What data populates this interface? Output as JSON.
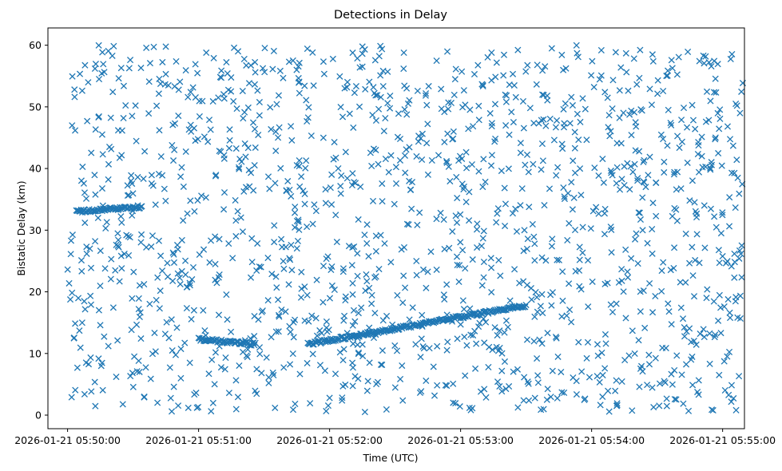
{
  "chart_data": {
    "type": "scatter",
    "title": "Detections in Delay",
    "xlabel": "Time (UTC)",
    "ylabel": "Bistatic Delay (km)",
    "x_ticks": [
      "2026-01-21 05:50:00",
      "2026-01-21 05:51:00",
      "2026-01-21 05:52:00",
      "2026-01-21 05:53:00",
      "2026-01-21 05:54:00",
      "2026-01-21 05:55:00"
    ],
    "y_ticks": [
      "0",
      "10",
      "20",
      "30",
      "40",
      "50",
      "60"
    ],
    "xlim": [
      "2026-01-21 05:49:51",
      "2026-01-21 05:55:10"
    ],
    "ylim": [
      -2.2,
      62.8
    ],
    "grid": false,
    "marker": "x",
    "color": "#1f77b4",
    "tracks": [
      {
        "x_start": "2026-01-21 05:50:04",
        "x_end": "2026-01-21 05:50:34",
        "y_start": 33.0,
        "y_end": 33.8
      },
      {
        "x_start": "2026-01-21 05:51:00",
        "x_end": "2026-01-21 05:51:26",
        "y_start": 12.3,
        "y_end": 11.5
      },
      {
        "x_start": "2026-01-21 05:51:50",
        "x_end": "2026-01-21 05:53:30",
        "y_start": 11.5,
        "y_end": 17.8
      }
    ],
    "noise": {
      "count": 1500,
      "x_start": "2026-01-21 05:50:00",
      "x_end": "2026-01-21 05:55:10",
      "y_min": 0.5,
      "y_max": 60
    }
  }
}
